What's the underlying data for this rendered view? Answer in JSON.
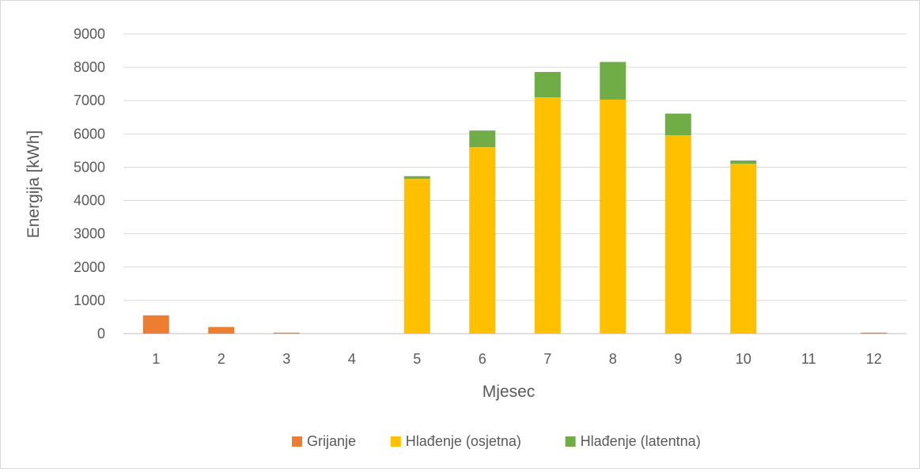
{
  "chart_data": {
    "type": "bar",
    "stacked": true,
    "title": "",
    "xlabel": "Mjesec",
    "ylabel": "Energija [kWh]",
    "ylim": [
      0,
      9000
    ],
    "y_ticks": [
      0,
      1000,
      2000,
      3000,
      4000,
      5000,
      6000,
      7000,
      8000,
      9000
    ],
    "grid": true,
    "legend_position": "bottom",
    "categories": [
      "1",
      "2",
      "3",
      "4",
      "5",
      "6",
      "7",
      "8",
      "9",
      "10",
      "11",
      "12"
    ],
    "series": [
      {
        "name": "Grijanje",
        "color": "#ED7D31",
        "values": [
          550,
          200,
          30,
          0,
          0,
          0,
          0,
          0,
          0,
          0,
          0,
          30
        ]
      },
      {
        "name": "Hlađenje (osjetna)",
        "color": "#FFC000",
        "values": [
          0,
          0,
          0,
          0,
          4650,
          5600,
          7100,
          7030,
          5960,
          5100,
          0,
          0
        ]
      },
      {
        "name": "Hlađenje (latentna)",
        "color": "#70AD47",
        "values": [
          0,
          0,
          0,
          0,
          80,
          500,
          760,
          1130,
          650,
          100,
          0,
          0
        ]
      }
    ]
  }
}
